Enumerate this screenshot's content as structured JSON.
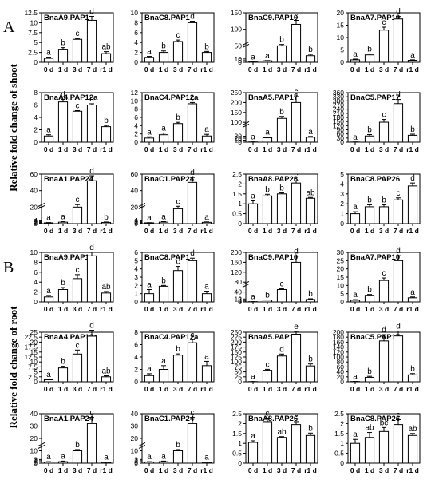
{
  "figure": {
    "panel_labels": [
      "A",
      "B"
    ],
    "ylabels": [
      "Relative fold change of shoot",
      "Relative fold change of root"
    ]
  },
  "chart_data": [
    {
      "type": "bar",
      "panel": "A",
      "row": 0,
      "col": 0,
      "title": "BnaA9.PAP1",
      "categories": [
        "0 d",
        "1 d",
        "3 d",
        "7 d",
        "r1 d"
      ],
      "values": [
        1.0,
        3.3,
        5.8,
        10.6,
        2.2
      ],
      "errors": [
        0.3,
        0.4,
        0.2,
        1.0,
        0.5
      ],
      "letters": [
        "a",
        "b",
        "c",
        "d",
        "ab"
      ],
      "ylim": [
        0,
        12.5
      ],
      "yticks": [
        0,
        2.5,
        5.0,
        7.5,
        10.0,
        12.5
      ]
    },
    {
      "type": "bar",
      "panel": "A",
      "row": 0,
      "col": 1,
      "title": "BnaC8.PAP1",
      "categories": [
        "0 d",
        "1 d",
        "3 d",
        "7 d",
        "r1 d"
      ],
      "values": [
        1.0,
        2.0,
        4.2,
        8.0,
        2.0
      ],
      "errors": [
        0.2,
        0.3,
        0.3,
        0.3,
        0.2
      ],
      "letters": [
        "a",
        "b",
        "c",
        "d",
        "b"
      ],
      "ylim": [
        0,
        10
      ],
      "yticks": [
        0,
        2,
        4,
        6,
        8,
        10
      ]
    },
    {
      "type": "bar",
      "panel": "A",
      "row": 0,
      "col": 2,
      "title": "BnaC9.PAP10",
      "categories": [
        "0 d",
        "1 d",
        "3 d",
        "7 d",
        "r1 d"
      ],
      "values": [
        1.0,
        4.5,
        50,
        115,
        20
      ],
      "errors": [
        0.3,
        0.8,
        4,
        12,
        4
      ],
      "letters": [
        "a",
        "a",
        "b",
        "c",
        "b"
      ],
      "ylim": [
        0,
        150
      ],
      "yticks": [
        0,
        5,
        10,
        50,
        100,
        150
      ],
      "broken": true
    },
    {
      "type": "bar",
      "panel": "A",
      "row": 0,
      "col": 3,
      "title": "BnaA7.PAP10",
      "categories": [
        "0 d",
        "1 d",
        "3 d",
        "7 d",
        "r1 d"
      ],
      "values": [
        1.0,
        3.0,
        13.0,
        17.5,
        0.8
      ],
      "errors": [
        0.3,
        0.4,
        1.2,
        1.0,
        0.2
      ],
      "letters": [
        "a",
        "b",
        "c",
        "d",
        "a"
      ],
      "ylim": [
        0,
        20
      ],
      "yticks": [
        0,
        5,
        10,
        15,
        20
      ]
    },
    {
      "type": "bar",
      "panel": "A",
      "row": 1,
      "col": 0,
      "title": "BnaA4.PAP12a",
      "categories": [
        "0 d",
        "1 d",
        "3 d",
        "7 d",
        "r1 d"
      ],
      "values": [
        1.0,
        6.5,
        5.0,
        6.0,
        2.5
      ],
      "errors": [
        0.2,
        0.4,
        0.1,
        0.2,
        0.2
      ],
      "letters": [
        "a",
        "d",
        "c",
        "d",
        "b"
      ],
      "ylim": [
        0,
        8
      ],
      "yticks": [
        0,
        2,
        4,
        6,
        8
      ]
    },
    {
      "type": "bar",
      "panel": "A",
      "row": 1,
      "col": 1,
      "title": "BnaC4.PAP12a",
      "categories": [
        "0 d",
        "1 d",
        "3 d",
        "7 d",
        "r1 d"
      ],
      "values": [
        1.0,
        1.8,
        4.5,
        9.3,
        1.5
      ],
      "errors": [
        0.3,
        0.4,
        0.3,
        0.3,
        0.4
      ],
      "letters": [
        "a",
        "a",
        "b",
        "c",
        "a"
      ],
      "ylim": [
        0,
        12
      ],
      "yticks": [
        0,
        2,
        4,
        6,
        8,
        10,
        12
      ]
    },
    {
      "type": "bar",
      "panel": "A",
      "row": 1,
      "col": 2,
      "title": "BnaA5.PAP17",
      "categories": [
        "0 d",
        "1 d",
        "3 d",
        "7 d",
        "r1 d"
      ],
      "values": [
        1.0,
        22,
        120,
        200,
        25
      ],
      "errors": [
        0.3,
        4,
        10,
        30,
        4
      ],
      "letters": [
        "a",
        "a",
        "b",
        "c",
        "a"
      ],
      "ylim": [
        0,
        250
      ],
      "yticks": [
        0,
        10,
        20,
        30,
        100,
        150,
        200,
        250
      ],
      "broken": true
    },
    {
      "type": "bar",
      "panel": "A",
      "row": 1,
      "col": 3,
      "title": "BnaC5.PAP17",
      "categories": [
        "0 d",
        "1 d",
        "3 d",
        "7 d",
        "r1 d"
      ],
      "values": [
        1.0,
        45,
        145,
        280,
        50
      ],
      "errors": [
        0.3,
        10,
        20,
        30,
        8
      ],
      "letters": [
        "a",
        "b",
        "c",
        "d",
        "b"
      ],
      "ylim": [
        0,
        360
      ],
      "yticks": [
        0,
        30,
        60,
        90,
        120,
        150,
        180,
        210,
        240,
        270,
        300,
        330,
        360
      ]
    },
    {
      "type": "bar",
      "panel": "A",
      "row": 2,
      "col": 0,
      "title": "BnaA1.PAP24",
      "categories": [
        "0 d",
        "1 d",
        "3 d",
        "7 d",
        "r1 d"
      ],
      "values": [
        1.0,
        1.8,
        20,
        52,
        1.5
      ],
      "errors": [
        0.3,
        0.6,
        3,
        6,
        0.5
      ],
      "letters": [
        "a",
        "a",
        "c",
        "d",
        "b"
      ],
      "ylim": [
        0,
        60
      ],
      "yticks": [
        0,
        1,
        2,
        3,
        4,
        20,
        40,
        60
      ],
      "broken": true
    },
    {
      "type": "bar",
      "panel": "A",
      "row": 2,
      "col": 1,
      "title": "BnaC1.PAP24",
      "categories": [
        "0 d",
        "1 d",
        "3 d",
        "7 d",
        "r1 d"
      ],
      "values": [
        1.0,
        1.8,
        18,
        50,
        1.6
      ],
      "errors": [
        0.2,
        0.6,
        3,
        6,
        0.5
      ],
      "letters": [
        "a",
        "a",
        "c",
        "d",
        "a"
      ],
      "ylim": [
        0,
        60
      ],
      "yticks": [
        0,
        1,
        2,
        3,
        4,
        20,
        40,
        60
      ],
      "broken": true
    },
    {
      "type": "bar",
      "panel": "A",
      "row": 2,
      "col": 2,
      "title": "BnaA8.PAP26",
      "categories": [
        "0 d",
        "1 d",
        "3 d",
        "7 d",
        "r1 d"
      ],
      "values": [
        1.0,
        1.4,
        1.5,
        2.05,
        1.28
      ],
      "errors": [
        0.15,
        0.08,
        0.05,
        0.12,
        0.04
      ],
      "letters": [
        "a",
        "b",
        "b",
        "c",
        "ab"
      ],
      "ylim": [
        0,
        2.5
      ],
      "yticks": [
        0,
        0.5,
        1.0,
        1.5,
        2.0,
        2.5
      ]
    },
    {
      "type": "bar",
      "panel": "A",
      "row": 2,
      "col": 3,
      "title": "BnaC8.PAP26",
      "categories": [
        "0 d",
        "1 d",
        "3 d",
        "7 d",
        "r1 d"
      ],
      "values": [
        1.0,
        1.7,
        1.7,
        2.4,
        3.8
      ],
      "errors": [
        0.2,
        0.2,
        0.2,
        0.2,
        0.3
      ],
      "letters": [
        "a",
        "b",
        "b",
        "c",
        "d"
      ],
      "ylim": [
        0,
        5
      ],
      "yticks": [
        0,
        1,
        2,
        3,
        4,
        5
      ]
    },
    {
      "type": "bar",
      "panel": "B",
      "row": 0,
      "col": 0,
      "title": "BnaA9.PAP1",
      "categories": [
        "0 d",
        "1 d",
        "3 d",
        "7 d",
        "r1 d"
      ],
      "values": [
        1.0,
        2.5,
        4.7,
        9.3,
        1.8
      ],
      "errors": [
        0.3,
        0.4,
        0.8,
        0.7,
        0.3
      ],
      "letters": [
        "a",
        "b",
        "c",
        "d",
        "ab"
      ],
      "ylim": [
        0,
        10
      ],
      "yticks": [
        0,
        2,
        4,
        6,
        8,
        10
      ]
    },
    {
      "type": "bar",
      "panel": "B",
      "row": 0,
      "col": 1,
      "title": "BnaC8.PAP1",
      "categories": [
        "0 d",
        "1 d",
        "3 d",
        "7 d",
        "r1 d"
      ],
      "values": [
        1.0,
        1.9,
        3.8,
        5.0,
        1.0
      ],
      "errors": [
        0.5,
        0.1,
        0.5,
        0.3,
        0.3
      ],
      "letters": [
        "a",
        "b",
        "c",
        "d",
        "a"
      ],
      "ylim": [
        0,
        6
      ],
      "yticks": [
        0,
        1,
        2,
        3,
        4,
        5,
        6
      ]
    },
    {
      "type": "bar",
      "panel": "B",
      "row": 0,
      "col": 2,
      "title": "BnaC9.PAP10",
      "categories": [
        "0 d",
        "1 d",
        "3 d",
        "7 d",
        "r1 d"
      ],
      "values": [
        1.0,
        7.5,
        50,
        160,
        10
      ],
      "errors": [
        0.3,
        0.5,
        3,
        25,
        3
      ],
      "letters": [
        "a",
        "b",
        "c",
        "d",
        "b"
      ],
      "ylim": [
        0,
        200
      ],
      "yticks": [
        0,
        4,
        8,
        12,
        40,
        80,
        120,
        160,
        200
      ],
      "broken": true
    },
    {
      "type": "bar",
      "panel": "B",
      "row": 0,
      "col": 3,
      "title": "BnaA7.PAP10",
      "categories": [
        "0 d",
        "1 d",
        "3 d",
        "7 d",
        "r1 d"
      ],
      "values": [
        1.0,
        4.0,
        13.0,
        25.0,
        2.5
      ],
      "errors": [
        0.4,
        0.5,
        1.5,
        3,
        0.5
      ],
      "letters": [
        "a",
        "b",
        "c",
        "d",
        "a"
      ],
      "ylim": [
        0,
        30
      ],
      "yticks": [
        0,
        5,
        10,
        15,
        20,
        25,
        30
      ]
    },
    {
      "type": "bar",
      "panel": "B",
      "row": 1,
      "col": 0,
      "title": "BnaA4.PAP12a",
      "categories": [
        "0 d",
        "1 d",
        "3 d",
        "7 d",
        "r1 d"
      ],
      "values": [
        1.0,
        7.0,
        14.0,
        23.0,
        2.5
      ],
      "errors": [
        0.3,
        0.8,
        2,
        3,
        0.5
      ],
      "letters": [
        "a",
        "b",
        "c",
        "d",
        "ab"
      ],
      "ylim": [
        0,
        25
      ],
      "yticks": [
        0,
        2.5,
        5,
        7.5,
        10,
        12.5,
        15,
        17.5,
        20,
        22.5,
        25
      ]
    },
    {
      "type": "bar",
      "panel": "B",
      "row": 1,
      "col": 1,
      "title": "BnaC4.PAP12a",
      "categories": [
        "0 d",
        "1 d",
        "3 d",
        "7 d",
        "r1 d"
      ],
      "values": [
        1.0,
        2.0,
        4.3,
        6.3,
        2.6
      ],
      "errors": [
        0.3,
        0.6,
        0.2,
        0.5,
        0.7
      ],
      "letters": [
        "a",
        "a",
        "b",
        "c",
        "a"
      ],
      "ylim": [
        0,
        8
      ],
      "yticks": [
        0,
        2,
        4,
        6,
        8
      ]
    },
    {
      "type": "bar",
      "panel": "B",
      "row": 1,
      "col": 2,
      "title": "BnaA5.PAP17",
      "categories": [
        "0 d",
        "1 d",
        "3 d",
        "7 d",
        "r1 d"
      ],
      "values": [
        1.0,
        58,
        130,
        240,
        80
      ],
      "errors": [
        0.3,
        5,
        10,
        15,
        10
      ],
      "letters": [
        "a",
        "c",
        "d",
        "e",
        "b"
      ],
      "ylim": [
        0,
        250
      ],
      "yticks": [
        0,
        25,
        50,
        75,
        100,
        125,
        150,
        175,
        200,
        225,
        250
      ]
    },
    {
      "type": "bar",
      "panel": "B",
      "row": 1,
      "col": 3,
      "title": "BnaC5.PAP17",
      "categories": [
        "0 d",
        "1 d",
        "3 d",
        "7 d",
        "r1 d"
      ],
      "values": [
        1.0,
        18,
        165,
        185,
        28
      ],
      "errors": [
        0.3,
        4,
        25,
        20,
        5
      ],
      "letters": [
        "a",
        "b",
        "d",
        "d",
        "b"
      ],
      "ylim": [
        0,
        200
      ],
      "yticks": [
        0,
        20,
        40,
        60,
        80,
        100,
        120,
        140,
        160,
        180,
        200
      ]
    },
    {
      "type": "bar",
      "panel": "B",
      "row": 2,
      "col": 0,
      "title": "BnaA1.PAP24",
      "categories": [
        "0 d",
        "1 d",
        "3 d",
        "7 d",
        "r1 d"
      ],
      "values": [
        1.0,
        1.2,
        10,
        32,
        0.7
      ],
      "errors": [
        0.2,
        0.5,
        1,
        5,
        0.2
      ],
      "letters": [
        "a",
        "a",
        "b",
        "c",
        "a"
      ],
      "ylim": [
        0,
        40
      ],
      "yticks": [
        0,
        1,
        2,
        3,
        10,
        20,
        30,
        40
      ],
      "broken": true
    },
    {
      "type": "bar",
      "panel": "B",
      "row": 2,
      "col": 1,
      "title": "BnaC1.PAP24",
      "categories": [
        "0 d",
        "1 d",
        "3 d",
        "7 d",
        "r1 d"
      ],
      "values": [
        1.0,
        1.2,
        10,
        32,
        0.7
      ],
      "errors": [
        0.2,
        0.5,
        1,
        5,
        0.2
      ],
      "letters": [
        "a",
        "a",
        "b",
        "c",
        "a"
      ],
      "ylim": [
        0,
        40
      ],
      "yticks": [
        0,
        1,
        2,
        3,
        10,
        20,
        30,
        40
      ],
      "broken": true
    },
    {
      "type": "bar",
      "panel": "B",
      "row": 2,
      "col": 2,
      "title": "BnaA8.PAP26",
      "categories": [
        "0 d",
        "1 d",
        "3 d",
        "7 d",
        "r1 d"
      ],
      "values": [
        1.05,
        2.1,
        1.3,
        1.95,
        1.4
      ],
      "errors": [
        0.08,
        0.18,
        0.04,
        0.15,
        0.12
      ],
      "letters": [
        "a",
        "c",
        "ab",
        "c",
        "b"
      ],
      "ylim": [
        0,
        2.5
      ],
      "yticks": [
        0,
        0.5,
        1.0,
        1.5,
        2.0,
        2.5
      ]
    },
    {
      "type": "bar",
      "panel": "B",
      "row": 2,
      "col": 3,
      "title": "BnaC8.PAP26",
      "categories": [
        "0 d",
        "1 d",
        "3 d",
        "7 d",
        "r1 d"
      ],
      "values": [
        1.0,
        1.3,
        1.6,
        1.95,
        1.4
      ],
      "errors": [
        0.2,
        0.25,
        0.2,
        0.25,
        0.1
      ],
      "letters": [
        "a",
        "ab",
        "bc",
        "c",
        "ab"
      ],
      "ylim": [
        0,
        2.5
      ],
      "yticks": [
        0,
        0.5,
        1.0,
        1.5,
        2.0,
        2.5
      ]
    }
  ]
}
